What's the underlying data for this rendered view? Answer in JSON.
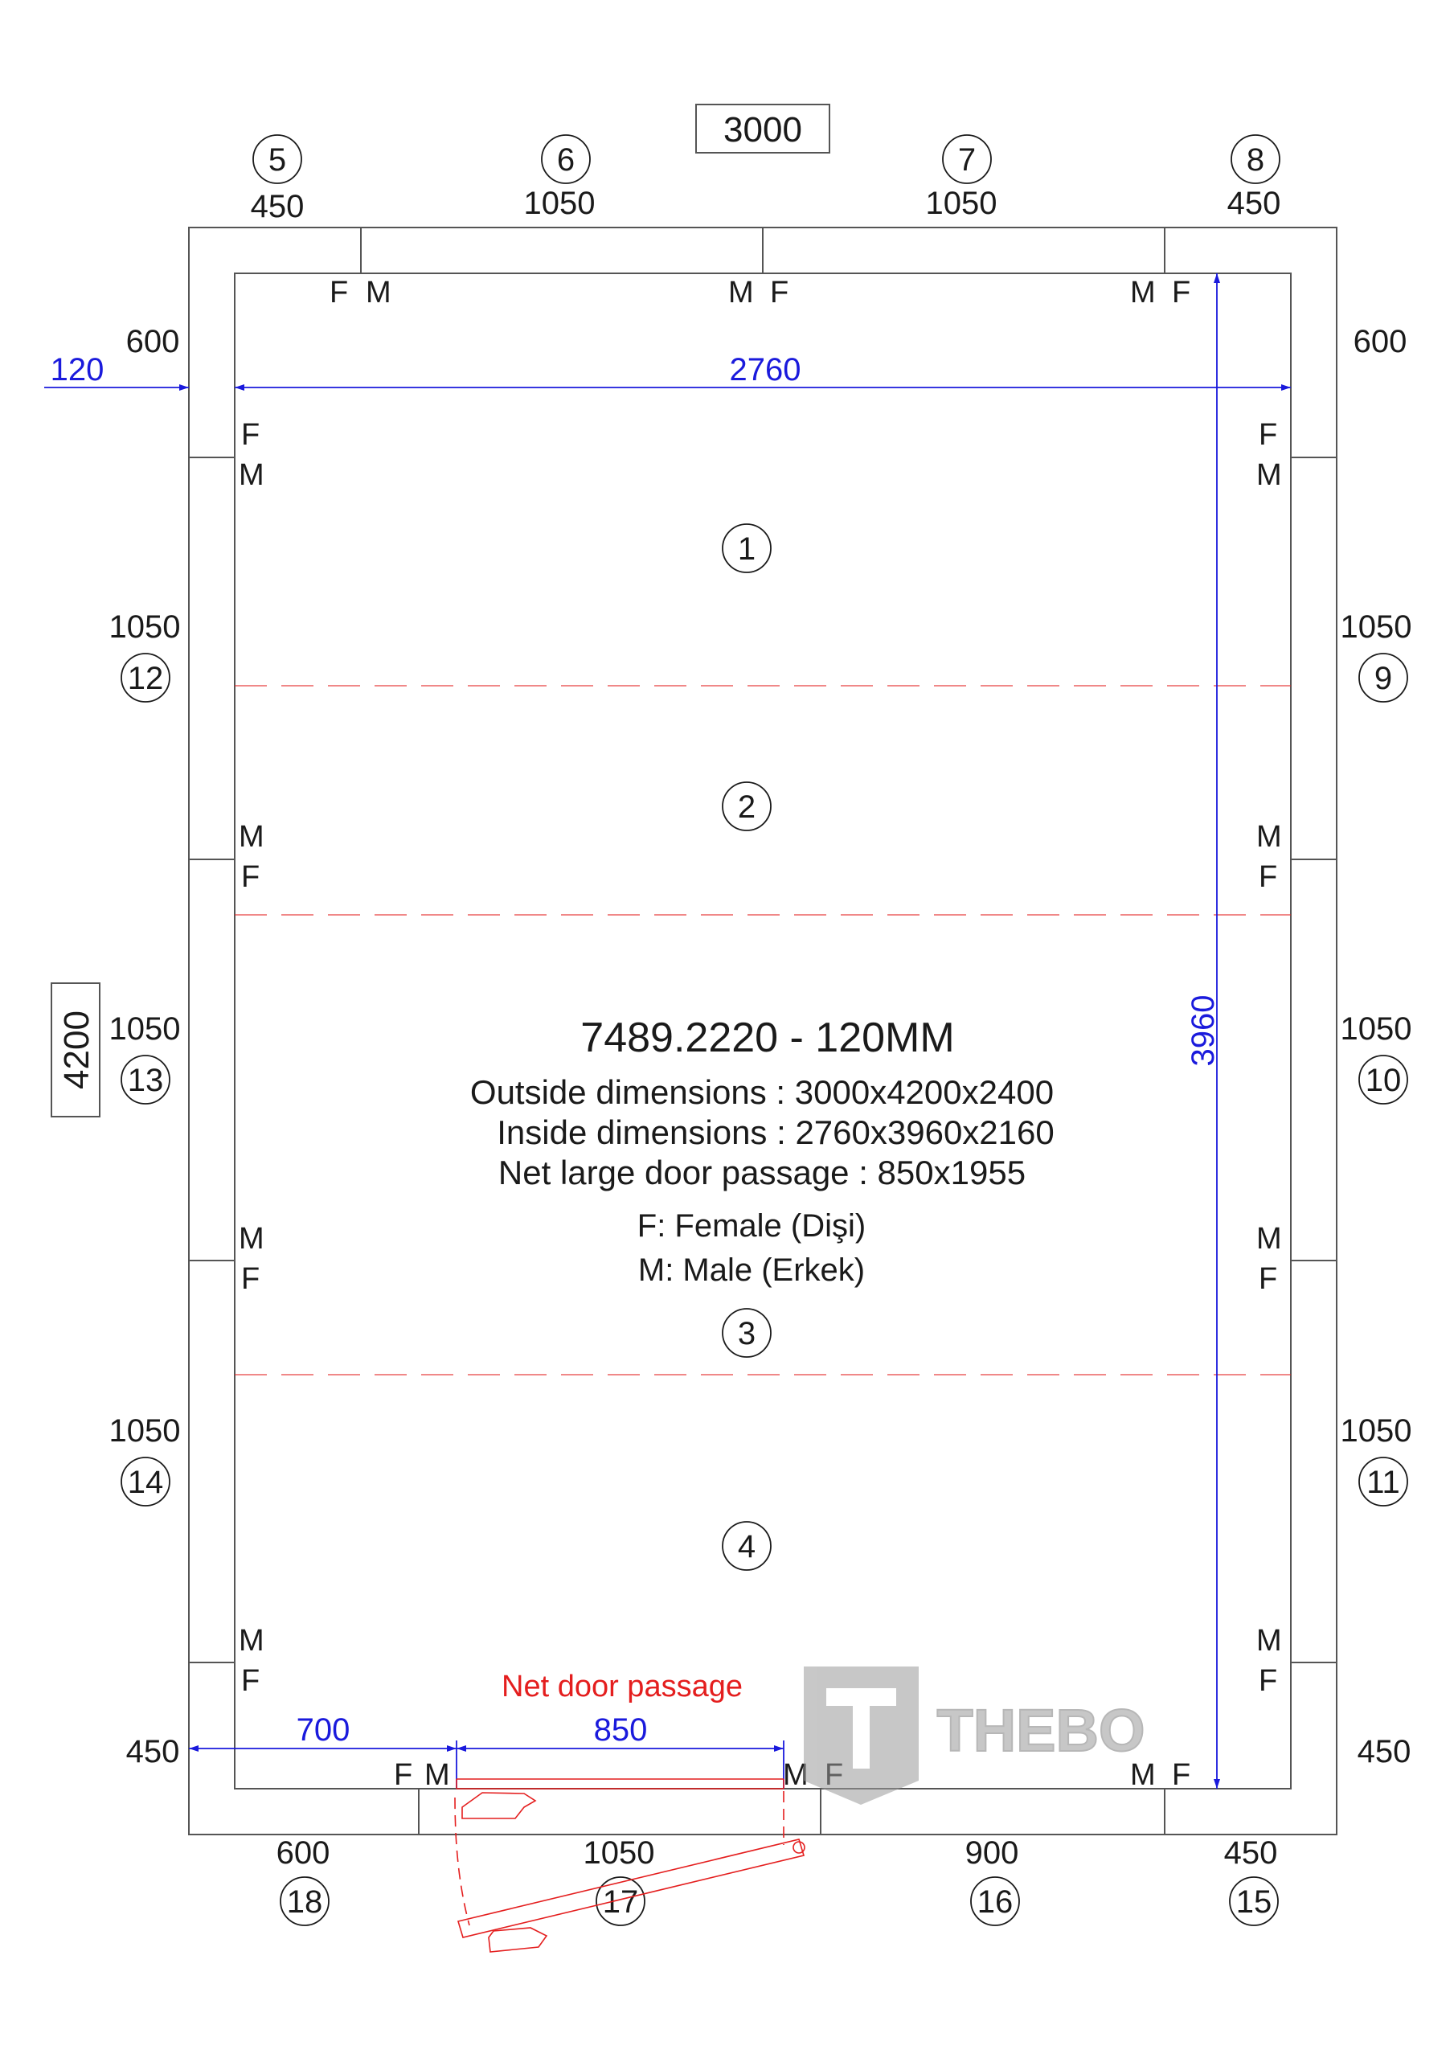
{
  "overall_width": "3000",
  "overall_length": "4200",
  "top_panels": [
    {
      "num": "5",
      "len": "450"
    },
    {
      "num": "6",
      "len": "1050"
    },
    {
      "num": "7",
      "len": "1050"
    },
    {
      "num": "8",
      "len": "450"
    }
  ],
  "right_panels": [
    {
      "num": "9",
      "len": "1050"
    },
    {
      "num": "10",
      "len": "1050"
    },
    {
      "num": "11",
      "len": "1050"
    }
  ],
  "left_panels": [
    {
      "num": "12",
      "len": "1050"
    },
    {
      "num": "13",
      "len": "1050"
    },
    {
      "num": "14",
      "len": "1050"
    }
  ],
  "bottom_panels": [
    {
      "num": "15",
      "len": "450"
    },
    {
      "num": "16",
      "len": "900"
    },
    {
      "num": "17",
      "len": "1050"
    },
    {
      "num": "18",
      "len": "600"
    }
  ],
  "corner_lengths": {
    "top_left": "600",
    "top_right": "600",
    "bottom_left": "450",
    "bottom_right": "450"
  },
  "floor_panels": [
    "1",
    "2",
    "3",
    "4"
  ],
  "dims": {
    "wall_thickness": "120",
    "inside_width": "2760",
    "inside_length": "3960",
    "door_offset": "700",
    "door_width": "850"
  },
  "connector_labels": {
    "female": "F",
    "male": "M"
  },
  "info": {
    "code": "7489.2220 - 120MM",
    "outside": "Outside dimensions : 3000x4200x2400",
    "inside": "Inside dimensions : 2760x3960x2160",
    "door": "Net large door passage : 850x1955",
    "legend_f": "F: Female (Dişi)",
    "legend_m": "M: Male (Erkek)"
  },
  "door_label": "Net door passage",
  "logo_text": "THEBO",
  "colors": {
    "line": "#1a1a1a",
    "dimension": "#1a1adc",
    "door": "#e41e1e",
    "seam": "#e41e1e",
    "logo": "#9a9a9a"
  }
}
